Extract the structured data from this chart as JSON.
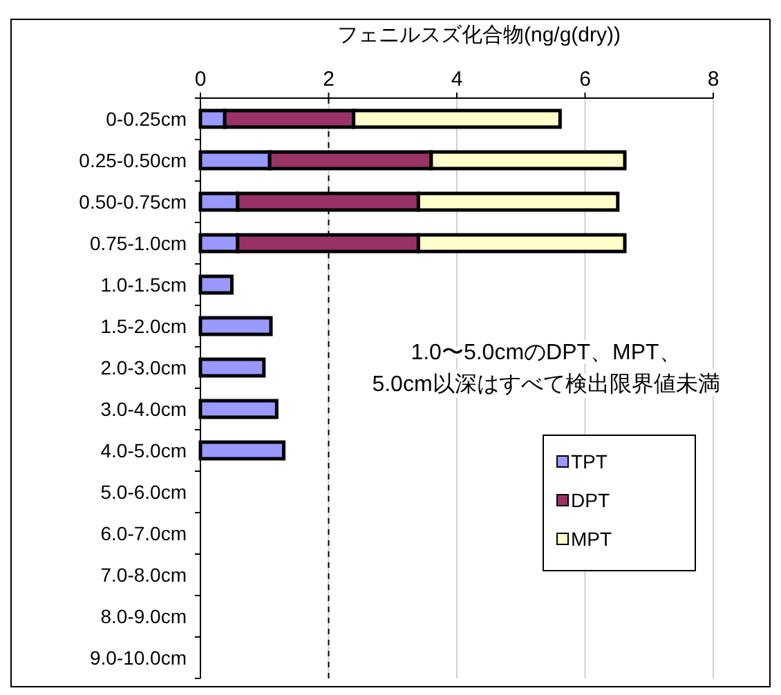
{
  "chart_data": {
    "type": "bar",
    "orientation": "horizontal",
    "stacked": true,
    "xlabel": "フェニルスズ化合物(ng/g(dry))",
    "categories": [
      "0-0.25cm",
      "0.25-0.50cm",
      "0.50-0.75cm",
      "0.75-1.0cm",
      "1.0-1.5cm",
      "1.5-2.0cm",
      "2.0-3.0cm",
      "3.0-4.0cm",
      "4.0-5.0cm",
      "5.0-6.0cm",
      "6.0-7.0cm",
      "7.0-8.0cm",
      "8.0-9.0cm",
      "9.0-10.0cm"
    ],
    "series": [
      {
        "name": "TPT",
        "color": "#9999ff",
        "values": [
          0.38,
          1.08,
          0.58,
          0.58,
          0.49,
          1.1,
          0.99,
          1.19,
          1.3,
          null,
          null,
          null,
          null,
          null
        ]
      },
      {
        "name": "DPT",
        "color": "#993366",
        "values": [
          2.01,
          2.52,
          2.82,
          2.82,
          null,
          null,
          null,
          null,
          null,
          null,
          null,
          null,
          null,
          null
        ]
      },
      {
        "name": "MPT",
        "color": "#ffffcc",
        "values": [
          3.22,
          3.02,
          3.11,
          3.22,
          null,
          null,
          null,
          null,
          null,
          null,
          null,
          null,
          null,
          null
        ]
      }
    ],
    "xlim": [
      0,
      8
    ],
    "xticks": [
      0,
      2,
      4,
      6,
      8
    ],
    "grid": "x",
    "legend": "bottom right",
    "ref_lines": [
      {
        "axis": "x",
        "value": 2,
        "line_style": "dashed",
        "color": "#000000"
      }
    ],
    "annotations": [
      "1.0〜5.0cmのDPT、MPT、",
      "5.0cm以深はすべて検出限界値未満"
    ]
  }
}
